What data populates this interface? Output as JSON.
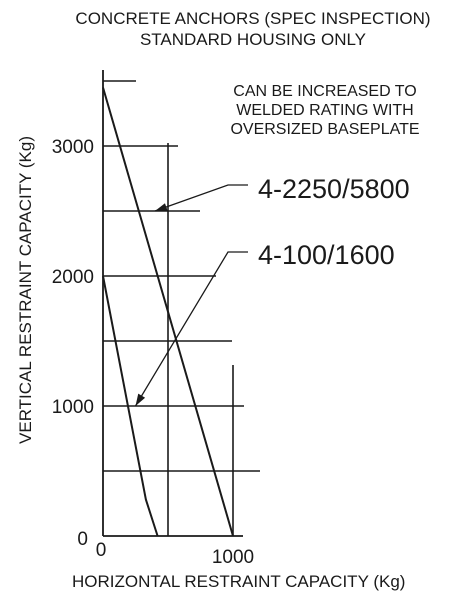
{
  "chart_data": {
    "type": "line",
    "title_lines": [
      "CONCRETE ANCHORS (SPEC INSPECTION)",
      "STANDARD HOUSING ONLY"
    ],
    "note_lines": [
      "CAN BE INCREASED TO",
      "WELDED RATING WITH",
      "OVERSIZED BASEPLATE"
    ],
    "xlabel": "HORIZONTAL RESTRAINT CAPACITY (Kg)",
    "ylabel": "VERTICAL RESTRAINT CAPACITY (Kg)",
    "y_origin_label": "0",
    "x_origin_label": "0",
    "xlim": [
      0,
      1200
    ],
    "ylim": [
      0,
      3700
    ],
    "xticks": [
      1000
    ],
    "yticks": [
      1000,
      2000,
      3000
    ],
    "x_gridlines": [
      500,
      1000
    ],
    "y_gridlines": [
      500,
      1000,
      1500,
      2000,
      2500,
      3000,
      3500
    ],
    "series": [
      {
        "name": "4-2250/5800",
        "points": [
          [
            0,
            3450
          ],
          [
            1000,
            0
          ]
        ],
        "callout_at": [
          400,
          2500
        ]
      },
      {
        "name": "4-100/1600",
        "points": [
          [
            0,
            2000
          ],
          [
            330,
            280
          ],
          [
            420,
            0
          ]
        ],
        "callout_at": [
          250,
          1000
        ]
      }
    ]
  }
}
